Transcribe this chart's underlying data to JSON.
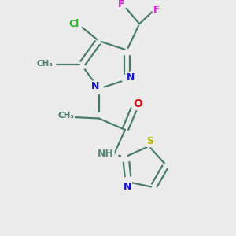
{
  "bg_color": "#ebebeb",
  "bond_color": "#4a7c6a",
  "bond_lw": 1.6,
  "dbl_sep": 0.13,
  "N_color": "#1414cc",
  "O_color": "#cc1414",
  "S_color": "#b8b800",
  "Cl_color": "#22bb22",
  "F_color": "#cc22cc",
  "H_color": "#5a8a7a",
  "C_color": "#4a7c6a",
  "figsize": [
    3.0,
    3.0
  ],
  "dpi": 100,
  "xlim": [
    -1,
    9
  ],
  "ylim": [
    -1,
    9
  ]
}
